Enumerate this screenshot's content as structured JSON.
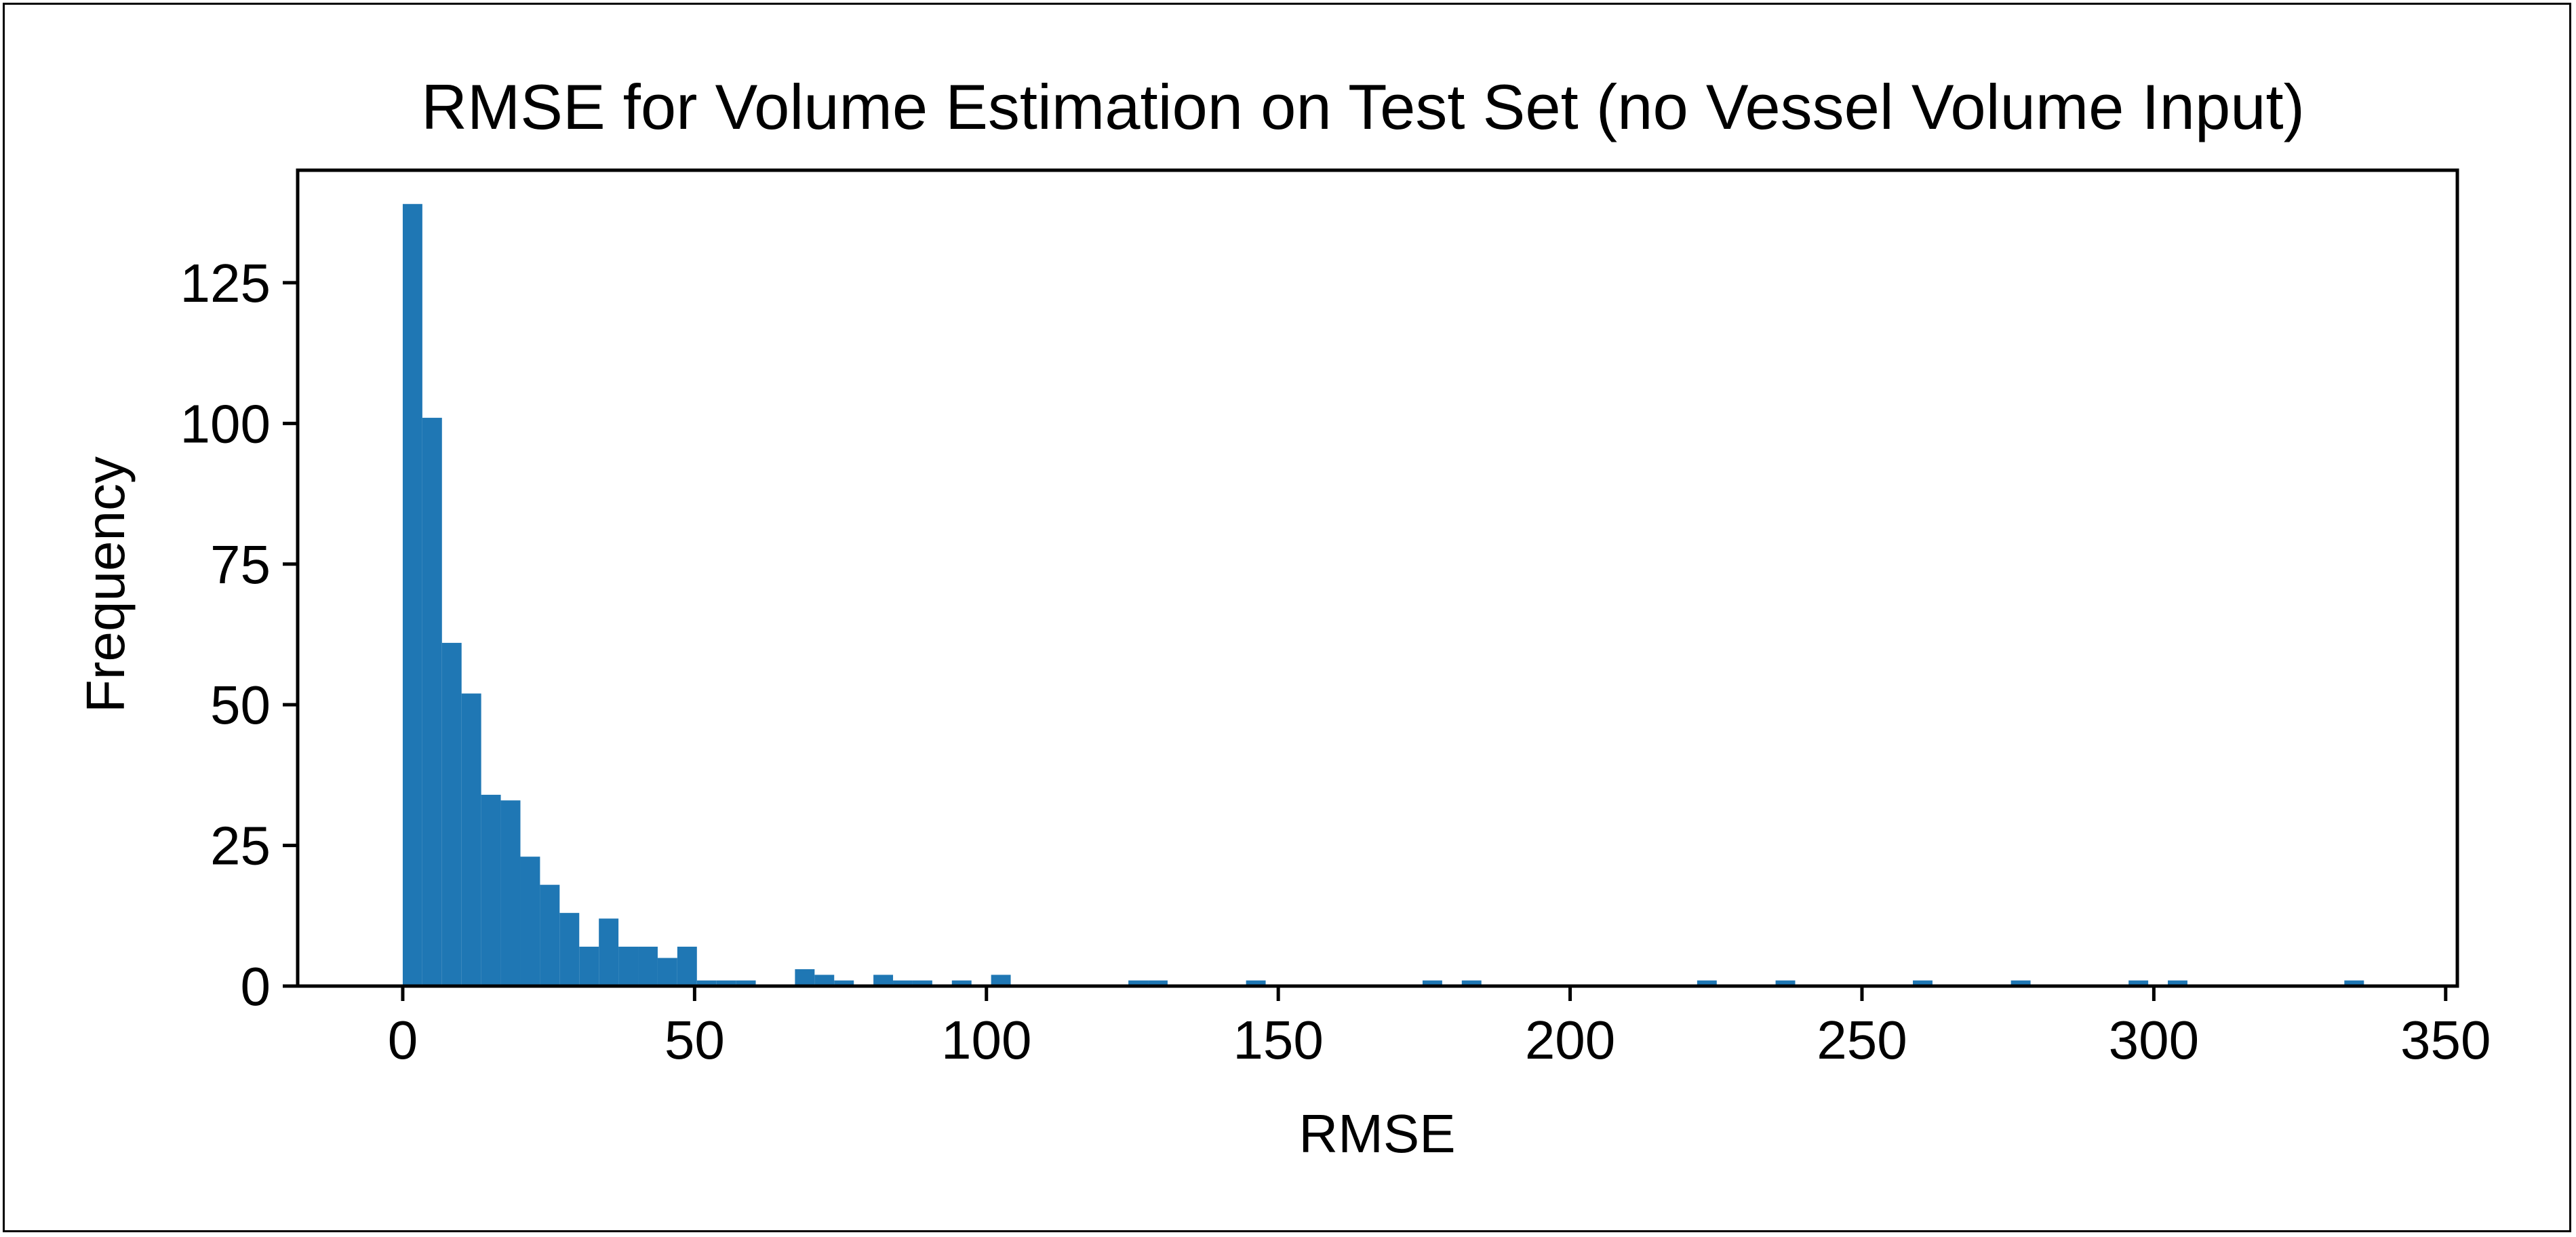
{
  "chart_data": {
    "type": "bar",
    "title": "RMSE for Volume Estimation on Test Set (no Vessel Volume Input)",
    "xlabel": "RMSE",
    "ylabel": "Frequency",
    "xlim": [
      -18,
      352
    ],
    "ylim": [
      0,
      145
    ],
    "xticks": [
      0,
      50,
      100,
      150,
      200,
      250,
      300,
      350
    ],
    "yticks": [
      0,
      25,
      50,
      75,
      100,
      125
    ],
    "grid": false,
    "bar_color": "#1f77b4",
    "bins": {
      "start": 0,
      "width": 3.36,
      "counts": [
        139,
        101,
        61,
        52,
        34,
        33,
        23,
        18,
        13,
        7,
        12,
        7,
        7,
        5,
        7,
        1,
        1,
        1,
        0,
        0,
        3,
        2,
        1,
        0,
        2,
        1,
        1,
        0,
        1,
        0,
        2,
        0,
        0,
        0,
        0,
        0,
        0,
        1,
        1,
        0,
        0,
        0,
        0,
        1,
        0,
        0,
        0,
        0,
        0,
        0,
        0,
        0,
        1,
        0,
        1,
        0,
        0,
        0,
        0,
        0,
        0,
        0,
        0,
        0,
        0,
        0,
        1,
        0,
        0,
        0,
        1,
        0,
        0,
        0,
        0,
        0,
        0,
        1,
        0,
        0,
        0,
        0,
        1,
        0,
        0,
        0,
        0,
        0,
        1,
        0,
        1,
        0,
        0,
        0,
        0,
        0,
        0,
        0,
        0,
        1
      ]
    }
  }
}
